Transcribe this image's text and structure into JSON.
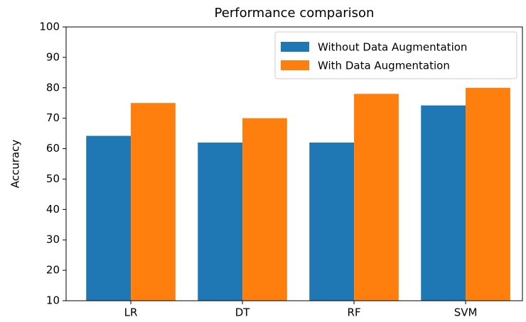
{
  "chart_data": {
    "type": "bar",
    "title": "Performance comparison",
    "y_label": "Accuracy",
    "categories": [
      "LR",
      "DT",
      "RF",
      "SVM"
    ],
    "series": [
      {
        "name": "Without Data Augmentation",
        "color": "#1f77b4",
        "values": [
          64.2,
          62,
          62,
          74.2
        ]
      },
      {
        "name": "With Data Augmentation",
        "color": "#ff7f0e",
        "values": [
          75,
          70,
          78,
          80
        ]
      }
    ],
    "ylim": [
      10,
      100
    ],
    "yticks": [
      10,
      20,
      30,
      40,
      50,
      60,
      70,
      80,
      90,
      100
    ],
    "grid": false,
    "legend": "upper right"
  }
}
